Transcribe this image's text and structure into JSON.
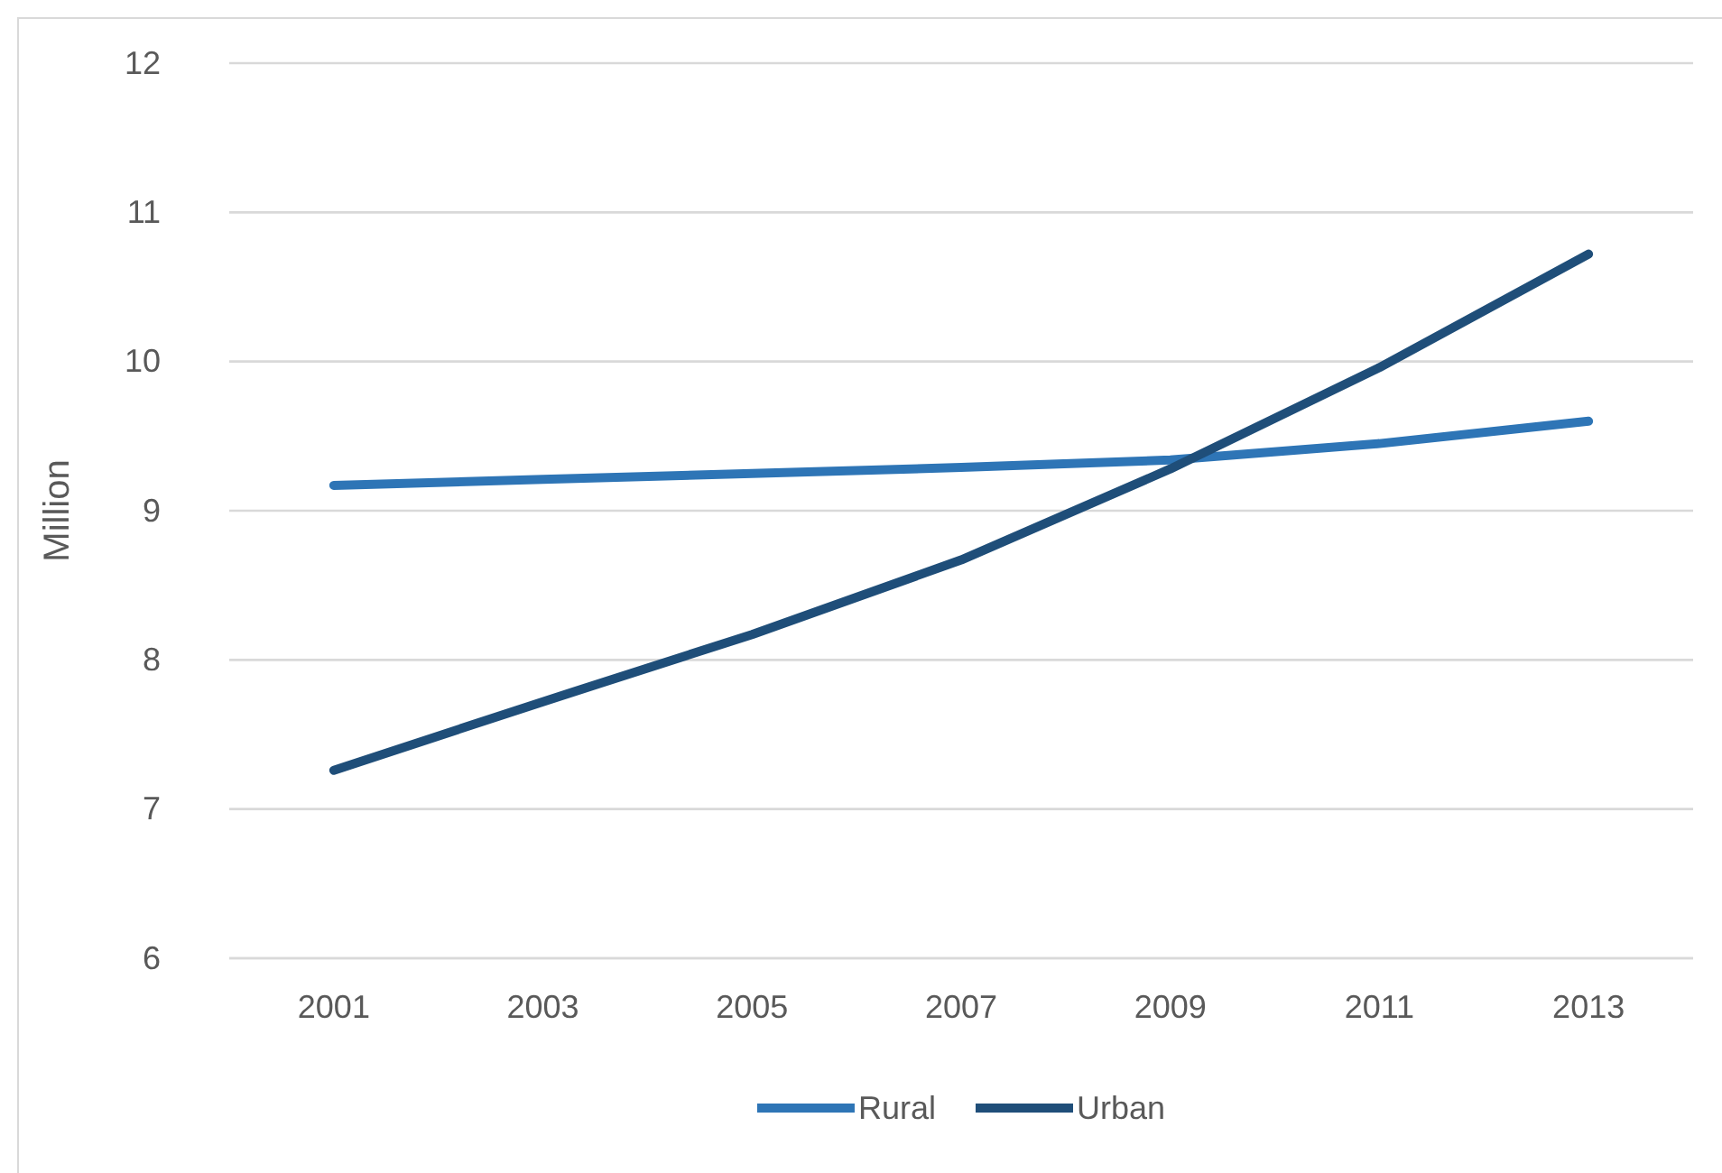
{
  "chart_data": {
    "type": "line",
    "ylabel": "Million",
    "categories": [
      "2001",
      "2003",
      "2005",
      "2007",
      "2009",
      "2011",
      "2013"
    ],
    "series": [
      {
        "name": "Rural",
        "color": "#2e75b6",
        "values": [
          9.17,
          9.21,
          9.25,
          9.29,
          9.34,
          9.45,
          9.6
        ]
      },
      {
        "name": "Urban",
        "color": "#1f4e79",
        "values": [
          7.26,
          7.72,
          8.17,
          8.67,
          9.28,
          9.96,
          10.72
        ]
      }
    ],
    "ylim": [
      6,
      12
    ],
    "yticks": [
      6,
      7,
      8,
      9,
      10,
      11,
      12
    ],
    "grid": "y",
    "legend": "bottom",
    "marker": "none",
    "line_style": "solid"
  }
}
